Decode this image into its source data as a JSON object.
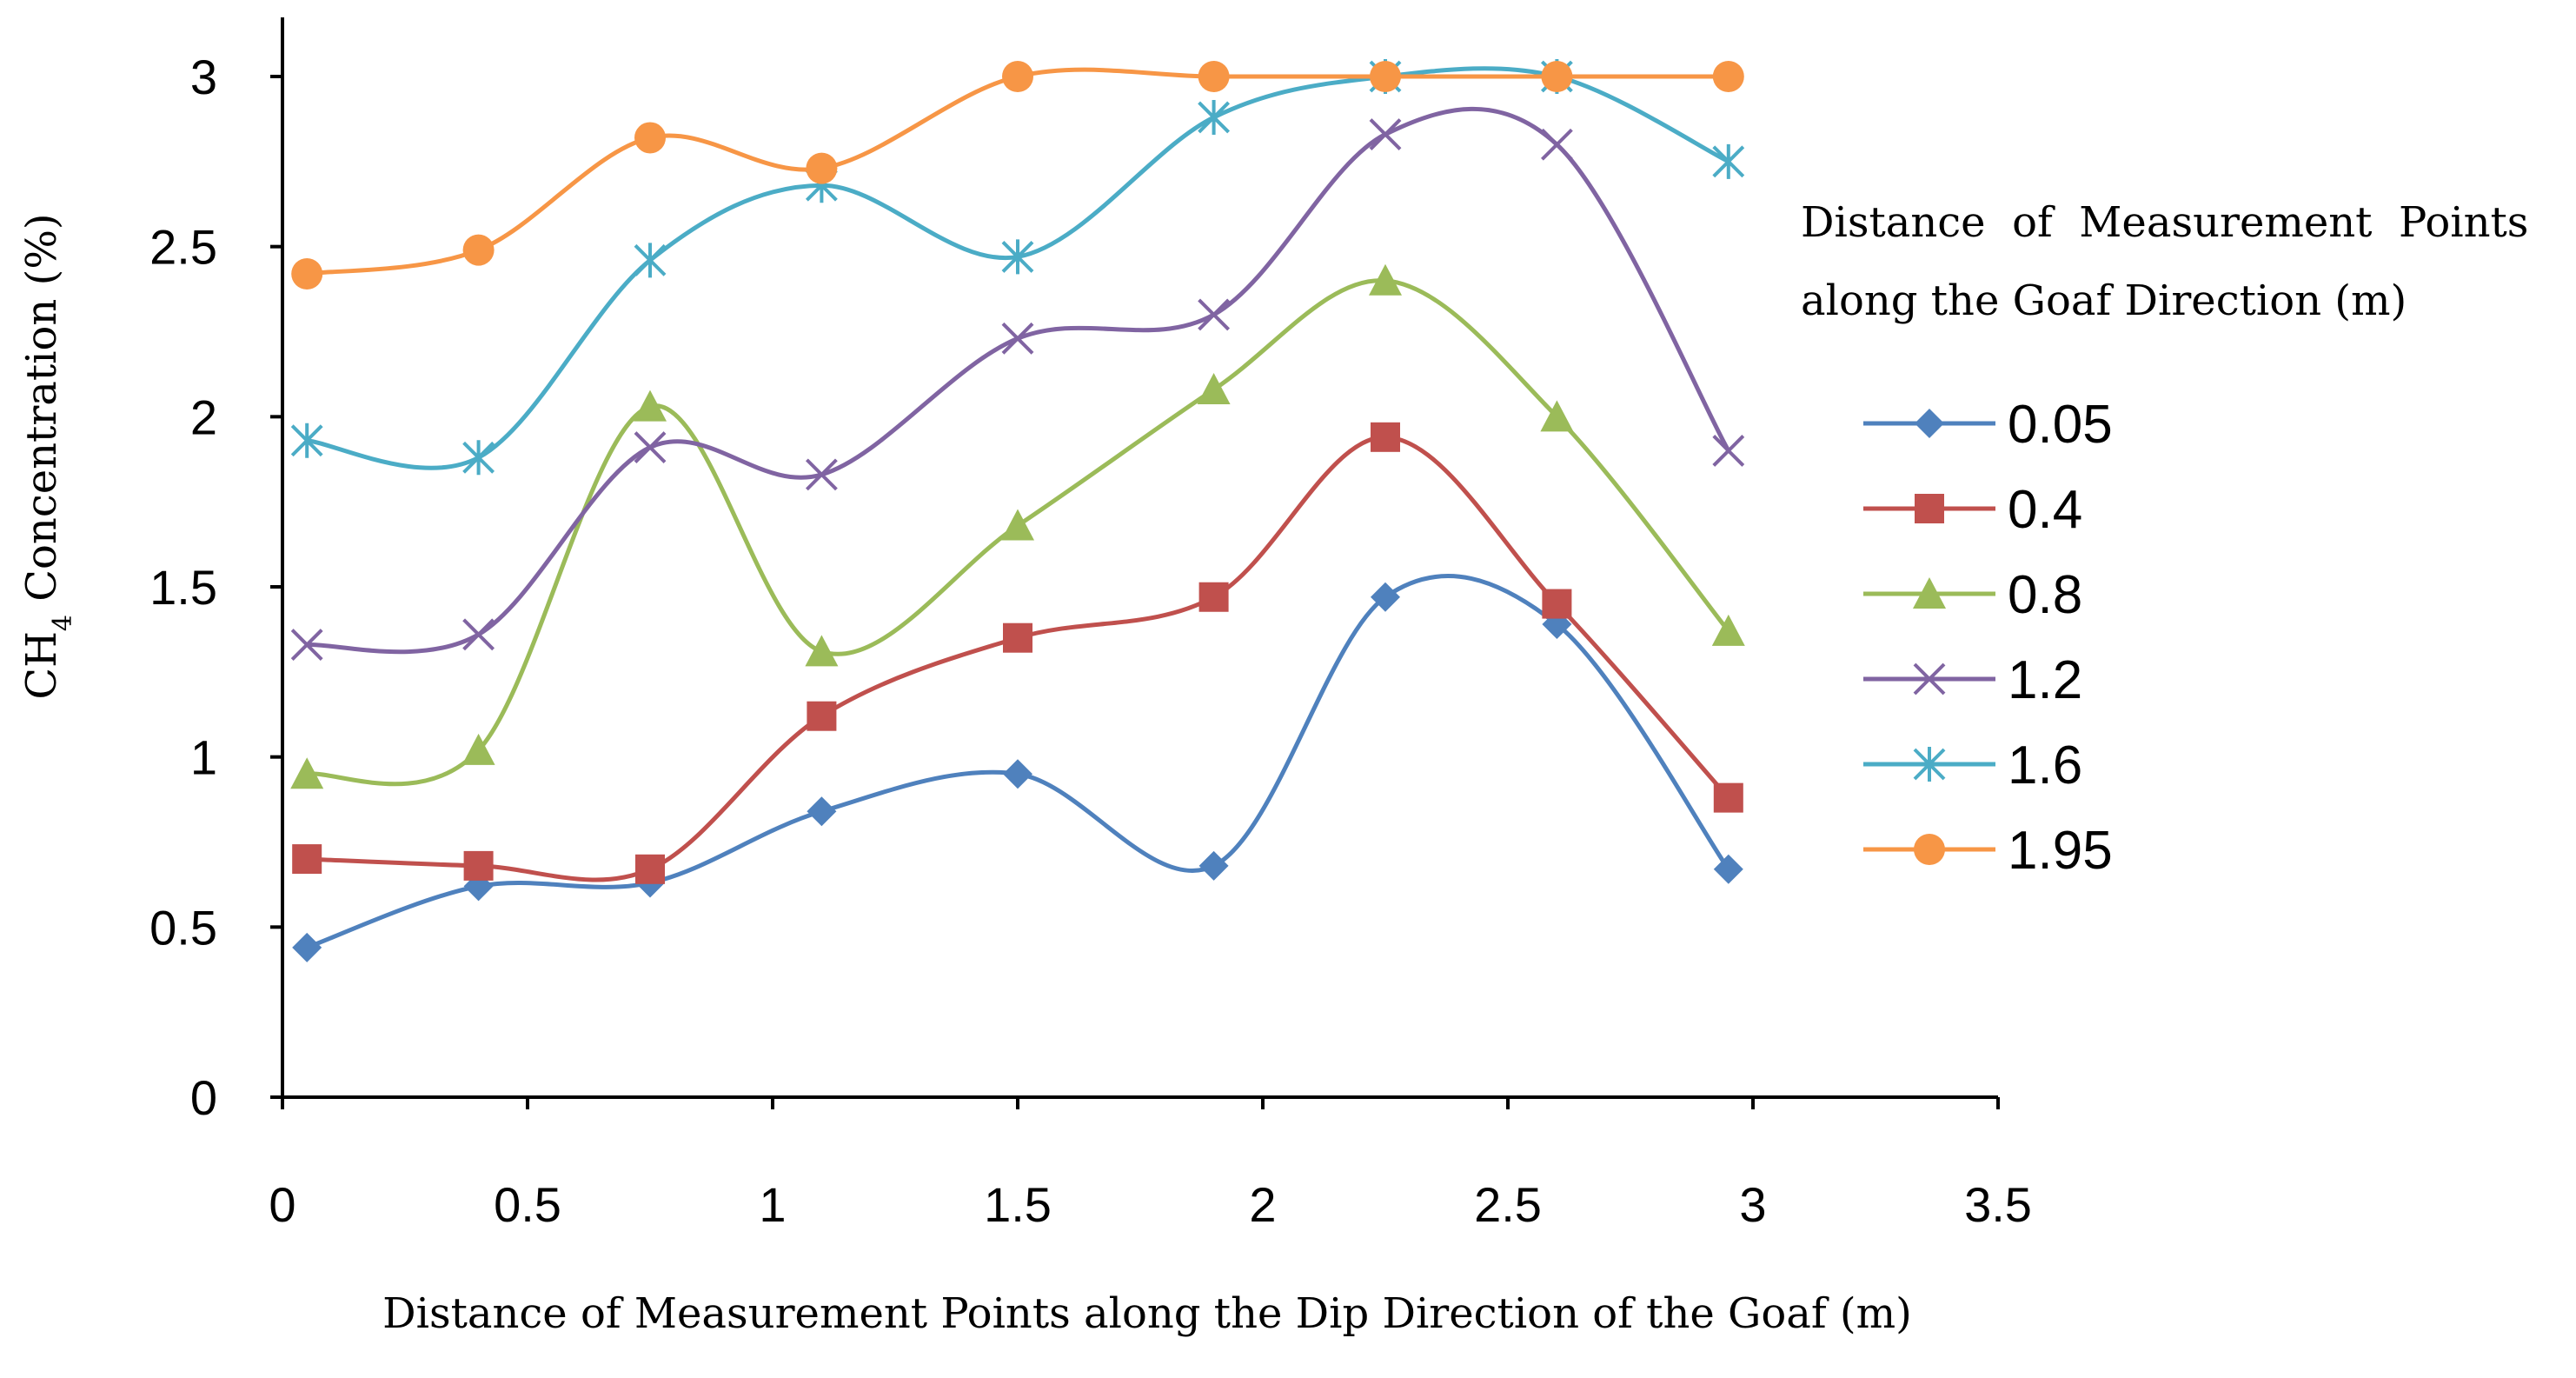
{
  "chart_data": {
    "type": "line",
    "smooth": true,
    "title": "",
    "xlabel": "Distance of Measurement Points along the Dip Direction of the Goaf (m)",
    "ylabel": {
      "prefix": "CH",
      "subscript": "4",
      "suffix": " Concentration (%)"
    },
    "xlim": [
      0,
      3.5
    ],
    "ylim": [
      0,
      3
    ],
    "xticks": [
      0,
      0.5,
      1,
      1.5,
      2,
      2.5,
      3,
      3.5
    ],
    "xtick_labels": [
      "0",
      "0.5",
      "1",
      "1.5",
      "2",
      "2.5",
      "3",
      "3.5"
    ],
    "yticks": [
      0,
      0.5,
      1,
      1.5,
      2,
      2.5,
      3
    ],
    "ytick_labels": [
      "0",
      "0.5",
      "1",
      "1.5",
      "2",
      "2.5",
      "3"
    ],
    "grid": false,
    "legend": {
      "title_line1": "Distance  of  Measurement  Points",
      "title_line2": "along the Goaf Direction (m)",
      "position": "right"
    },
    "x": [
      0.05,
      0.4,
      0.75,
      1.1,
      1.5,
      1.9,
      2.25,
      2.6,
      2.95
    ],
    "series": [
      {
        "name": "0.05",
        "color": "#4F81BD",
        "marker": "diamond",
        "values": [
          0.44,
          0.62,
          0.63,
          0.84,
          0.95,
          0.68,
          1.47,
          1.39,
          0.67
        ]
      },
      {
        "name": "0.4",
        "color": "#C0504D",
        "marker": "square",
        "values": [
          0.7,
          0.68,
          0.67,
          1.12,
          1.35,
          1.47,
          1.94,
          1.45,
          0.88
        ]
      },
      {
        "name": "0.8",
        "color": "#9BBB59",
        "marker": "triangle",
        "values": [
          0.95,
          1.02,
          2.03,
          1.31,
          1.68,
          2.08,
          2.4,
          2.0,
          1.37
        ]
      },
      {
        "name": "1.2",
        "color": "#8064A2",
        "marker": "x",
        "values": [
          1.33,
          1.36,
          1.91,
          1.83,
          2.23,
          2.3,
          2.83,
          2.8,
          1.9
        ]
      },
      {
        "name": "1.6",
        "color": "#4BACC6",
        "marker": "star",
        "values": [
          1.93,
          1.88,
          2.46,
          2.68,
          2.47,
          2.88,
          3.0,
          3.0,
          2.75
        ]
      },
      {
        "name": "1.95",
        "color": "#F79646",
        "marker": "circle",
        "values": [
          2.42,
          2.49,
          2.82,
          2.73,
          3.0,
          3.0,
          3.0,
          3.0,
          3.0
        ]
      }
    ]
  }
}
